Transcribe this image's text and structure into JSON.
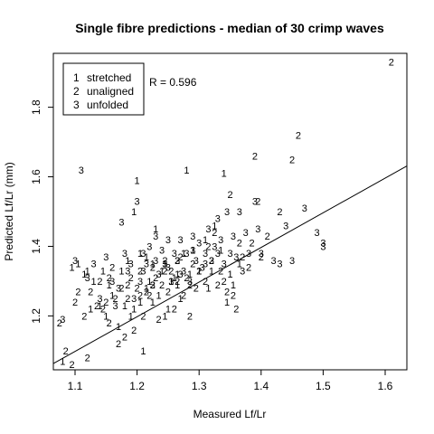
{
  "chart_data": {
    "type": "scatter",
    "title": "Single fibre predictions - median of 30 crimp waves",
    "xlabel": "Measured Lf/Lr",
    "ylabel": "Predicted Lf/Lr (mm)",
    "xlim": [
      1.065,
      1.635
    ],
    "ylim": [
      1.045,
      1.955
    ],
    "xticks": [
      1.1,
      1.2,
      1.3,
      1.4,
      1.5,
      1.6
    ],
    "yticks": [
      1.2,
      1.4,
      1.6,
      1.8
    ],
    "xtick_labels": [
      "1.1",
      "1.2",
      "1.3",
      "1.4",
      "1.5",
      "1.6"
    ],
    "ytick_labels": [
      "1.2",
      "1.4",
      "1.6",
      "1.8"
    ],
    "grid": false,
    "legend_position": "top-left",
    "legend": [
      {
        "marker": "1",
        "label": "stretched"
      },
      {
        "marker": "2",
        "label": "unaligned"
      },
      {
        "marker": "3",
        "label": "unfolded"
      }
    ],
    "annotation": "R = 0.596",
    "fit_line": {
      "x": [
        1.065,
        1.635
      ],
      "y": [
        1.063,
        1.631
      ]
    },
    "series": [
      {
        "name": "stretched",
        "marker": "1",
        "points": [
          [
            1.08,
            1.07
          ],
          [
            1.095,
            1.34
          ],
          [
            1.105,
            1.35
          ],
          [
            1.115,
            1.32
          ],
          [
            1.12,
            1.33
          ],
          [
            1.125,
            1.22
          ],
          [
            1.13,
            1.3
          ],
          [
            1.14,
            1.23
          ],
          [
            1.145,
            1.33
          ],
          [
            1.15,
            1.2
          ],
          [
            1.155,
            1.29
          ],
          [
            1.16,
            1.26
          ],
          [
            1.17,
            1.17
          ],
          [
            1.175,
            1.33
          ],
          [
            1.18,
            1.23
          ],
          [
            1.185,
            1.36
          ],
          [
            1.19,
            1.2
          ],
          [
            1.195,
            1.22
          ],
          [
            1.2,
            1.59
          ],
          [
            1.205,
            1.38
          ],
          [
            1.21,
            1.1
          ],
          [
            1.215,
            1.28
          ],
          [
            1.22,
            1.3
          ],
          [
            1.225,
            1.24
          ],
          [
            1.23,
            1.45
          ],
          [
            1.235,
            1.26
          ],
          [
            1.24,
            1.33
          ],
          [
            1.245,
            1.2
          ],
          [
            1.25,
            1.22
          ],
          [
            1.255,
            1.3
          ],
          [
            1.26,
            1.31
          ],
          [
            1.265,
            1.32
          ],
          [
            1.27,
            1.25
          ],
          [
            1.275,
            1.38
          ],
          [
            1.28,
            1.62
          ],
          [
            1.285,
            1.32
          ],
          [
            1.29,
            1.39
          ],
          [
            1.3,
            1.33
          ],
          [
            1.31,
            1.42
          ],
          [
            1.315,
            1.28
          ],
          [
            1.32,
            1.33
          ],
          [
            1.325,
            1.46
          ],
          [
            1.335,
            1.39
          ],
          [
            1.34,
            1.61
          ],
          [
            1.345,
            1.24
          ],
          [
            1.35,
            1.32
          ],
          [
            1.355,
            1.29
          ],
          [
            1.365,
            1.35
          ],
          [
            1.195,
            1.5
          ],
          [
            1.205,
            1.24
          ],
          [
            1.225,
            1.35
          ],
          [
            1.215,
            1.37
          ],
          [
            1.245,
            1.35
          ],
          [
            1.265,
            1.29
          ]
        ]
      },
      {
        "name": "unaligned",
        "marker": "2",
        "points": [
          [
            1.075,
            1.18
          ],
          [
            1.085,
            1.1
          ],
          [
            1.095,
            1.06
          ],
          [
            1.1,
            1.24
          ],
          [
            1.105,
            1.27
          ],
          [
            1.115,
            1.2
          ],
          [
            1.12,
            1.08
          ],
          [
            1.125,
            1.27
          ],
          [
            1.135,
            1.23
          ],
          [
            1.14,
            1.3
          ],
          [
            1.145,
            1.22
          ],
          [
            1.15,
            1.24
          ],
          [
            1.155,
            1.18
          ],
          [
            1.16,
            1.34
          ],
          [
            1.165,
            1.25
          ],
          [
            1.17,
            1.12
          ],
          [
            1.175,
            1.28
          ],
          [
            1.18,
            1.14
          ],
          [
            1.185,
            1.25
          ],
          [
            1.19,
            1.31
          ],
          [
            1.195,
            1.16
          ],
          [
            1.2,
            1.28
          ],
          [
            1.205,
            1.33
          ],
          [
            1.21,
            1.2
          ],
          [
            1.215,
            1.27
          ],
          [
            1.22,
            1.26
          ],
          [
            1.225,
            1.34
          ],
          [
            1.23,
            1.31
          ],
          [
            1.235,
            1.19
          ],
          [
            1.24,
            1.29
          ],
          [
            1.245,
            1.36
          ],
          [
            1.25,
            1.27
          ],
          [
            1.255,
            1.33
          ],
          [
            1.26,
            1.22
          ],
          [
            1.265,
            1.3
          ],
          [
            1.27,
            1.37
          ],
          [
            1.275,
            1.26
          ],
          [
            1.28,
            1.31
          ],
          [
            1.285,
            1.2
          ],
          [
            1.29,
            1.35
          ],
          [
            1.295,
            1.28
          ],
          [
            1.3,
            1.33
          ],
          [
            1.31,
            1.3
          ],
          [
            1.315,
            1.4
          ],
          [
            1.32,
            1.36
          ],
          [
            1.325,
            1.44
          ],
          [
            1.33,
            1.29
          ],
          [
            1.335,
            1.33
          ],
          [
            1.34,
            1.3
          ],
          [
            1.345,
            1.27
          ],
          [
            1.35,
            1.55
          ],
          [
            1.355,
            1.26
          ],
          [
            1.36,
            1.22
          ],
          [
            1.365,
            1.41
          ],
          [
            1.37,
            1.37
          ],
          [
            1.38,
            1.34
          ],
          [
            1.385,
            1.41
          ],
          [
            1.39,
            1.66
          ],
          [
            1.395,
            1.53
          ],
          [
            1.4,
            1.37
          ],
          [
            1.41,
            1.43
          ],
          [
            1.43,
            1.5
          ],
          [
            1.45,
            1.65
          ],
          [
            1.46,
            1.72
          ],
          [
            1.61,
            1.93
          ],
          [
            1.155,
            1.31
          ],
          [
            1.185,
            1.29
          ],
          [
            1.205,
            1.26
          ],
          [
            1.225,
            1.29
          ],
          [
            1.245,
            1.33
          ],
          [
            1.265,
            1.36
          ],
          [
            1.285,
            1.29
          ]
        ]
      },
      {
        "name": "unfolded",
        "marker": "3",
        "points": [
          [
            1.08,
            1.19
          ],
          [
            1.1,
            1.36
          ],
          [
            1.11,
            1.62
          ],
          [
            1.12,
            1.31
          ],
          [
            1.13,
            1.35
          ],
          [
            1.14,
            1.25
          ],
          [
            1.15,
            1.37
          ],
          [
            1.16,
            1.3
          ],
          [
            1.165,
            1.23
          ],
          [
            1.17,
            1.28
          ],
          [
            1.175,
            1.47
          ],
          [
            1.18,
            1.38
          ],
          [
            1.185,
            1.33
          ],
          [
            1.19,
            1.35
          ],
          [
            1.195,
            1.25
          ],
          [
            1.2,
            1.53
          ],
          [
            1.205,
            1.3
          ],
          [
            1.21,
            1.38
          ],
          [
            1.215,
            1.35
          ],
          [
            1.22,
            1.4
          ],
          [
            1.225,
            1.29
          ],
          [
            1.23,
            1.43
          ],
          [
            1.235,
            1.32
          ],
          [
            1.24,
            1.39
          ],
          [
            1.245,
            1.35
          ],
          [
            1.25,
            1.42
          ],
          [
            1.255,
            1.3
          ],
          [
            1.26,
            1.38
          ],
          [
            1.265,
            1.36
          ],
          [
            1.27,
            1.42
          ],
          [
            1.275,
            1.33
          ],
          [
            1.28,
            1.38
          ],
          [
            1.285,
            1.3
          ],
          [
            1.29,
            1.43
          ],
          [
            1.295,
            1.36
          ],
          [
            1.3,
            1.41
          ],
          [
            1.305,
            1.34
          ],
          [
            1.31,
            1.38
          ],
          [
            1.315,
            1.45
          ],
          [
            1.32,
            1.36
          ],
          [
            1.325,
            1.4
          ],
          [
            1.33,
            1.48
          ],
          [
            1.335,
            1.42
          ],
          [
            1.34,
            1.35
          ],
          [
            1.345,
            1.5
          ],
          [
            1.35,
            1.38
          ],
          [
            1.355,
            1.43
          ],
          [
            1.36,
            1.37
          ],
          [
            1.365,
            1.5
          ],
          [
            1.37,
            1.33
          ],
          [
            1.375,
            1.44
          ],
          [
            1.38,
            1.38
          ],
          [
            1.39,
            1.53
          ],
          [
            1.395,
            1.45
          ],
          [
            1.4,
            1.38
          ],
          [
            1.42,
            1.36
          ],
          [
            1.43,
            1.35
          ],
          [
            1.44,
            1.46
          ],
          [
            1.45,
            1.36
          ],
          [
            1.47,
            1.51
          ],
          [
            1.49,
            1.44
          ],
          [
            1.5,
            1.4
          ],
          [
            1.5,
            1.41
          ],
          [
            1.21,
            1.33
          ],
          [
            1.23,
            1.36
          ],
          [
            1.25,
            1.34
          ],
          [
            1.27,
            1.32
          ],
          [
            1.29,
            1.39
          ],
          [
            1.31,
            1.35
          ],
          [
            1.33,
            1.38
          ]
        ]
      }
    ]
  }
}
